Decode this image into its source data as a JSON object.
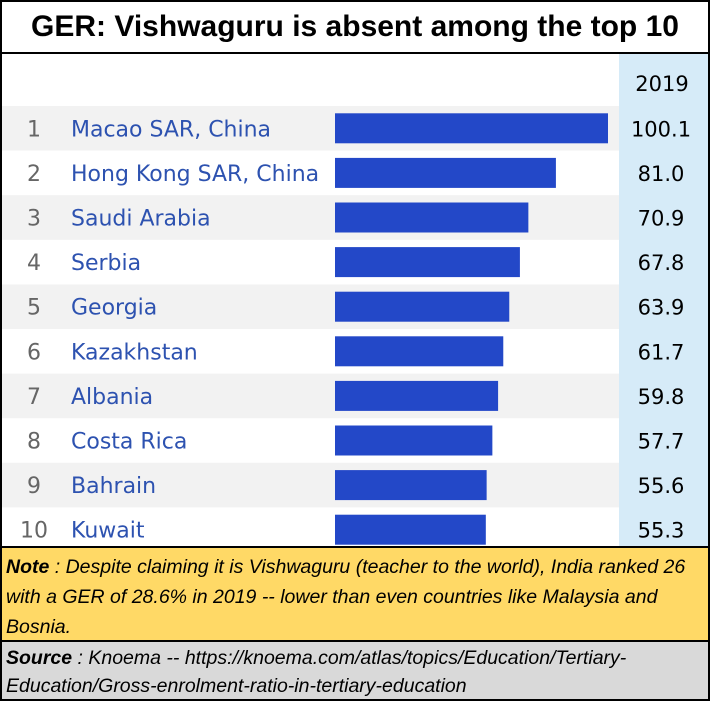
{
  "title": "GER: Vishwaguru is absent among the top 10",
  "note": {
    "label": "Note",
    "text": " : Despite claiming it is Vishwaguru (teacher to the world), India ranked 26 with a GER of 28.6% in 2019 -- lower than even countries like Malaysia and Bosnia."
  },
  "source": {
    "label": "Source",
    "text": " : Knoema -- https://knoema.com/atlas/topics/Education/Tertiary-Education/Gross-enrolment-ratio-in-tertiary-education"
  },
  "colors": {
    "bar": "#2348c8",
    "country_text": "#2d52b0",
    "rank_text": "#666666",
    "stripe": "#f2f2f2",
    "value_column": "#d6ebf8",
    "note_bg": "#ffd966",
    "source_bg": "#d9d9d9"
  },
  "chart_data": {
    "type": "bar",
    "orientation": "horizontal",
    "column_header": "2019",
    "ranks": [
      "1",
      "2",
      "3",
      "4",
      "5",
      "6",
      "7",
      "8",
      "9",
      "10"
    ],
    "categories": [
      "Macao SAR, China",
      "Hong Kong SAR, China",
      "Saudi Arabia",
      "Serbia",
      "Georgia",
      "Kazakhstan",
      "Albania",
      "Costa Rica",
      "Bahrain",
      "Kuwait"
    ],
    "values": [
      100.1,
      81.0,
      70.9,
      67.8,
      63.9,
      61.7,
      59.8,
      57.7,
      55.6,
      55.3
    ],
    "value_labels": [
      "100.1",
      "81.0",
      "70.9",
      "67.8",
      "63.9",
      "61.7",
      "59.8",
      "57.7",
      "55.6",
      "55.3"
    ],
    "xlim": [
      0,
      100.1
    ],
    "grid": false,
    "legend": "none"
  }
}
